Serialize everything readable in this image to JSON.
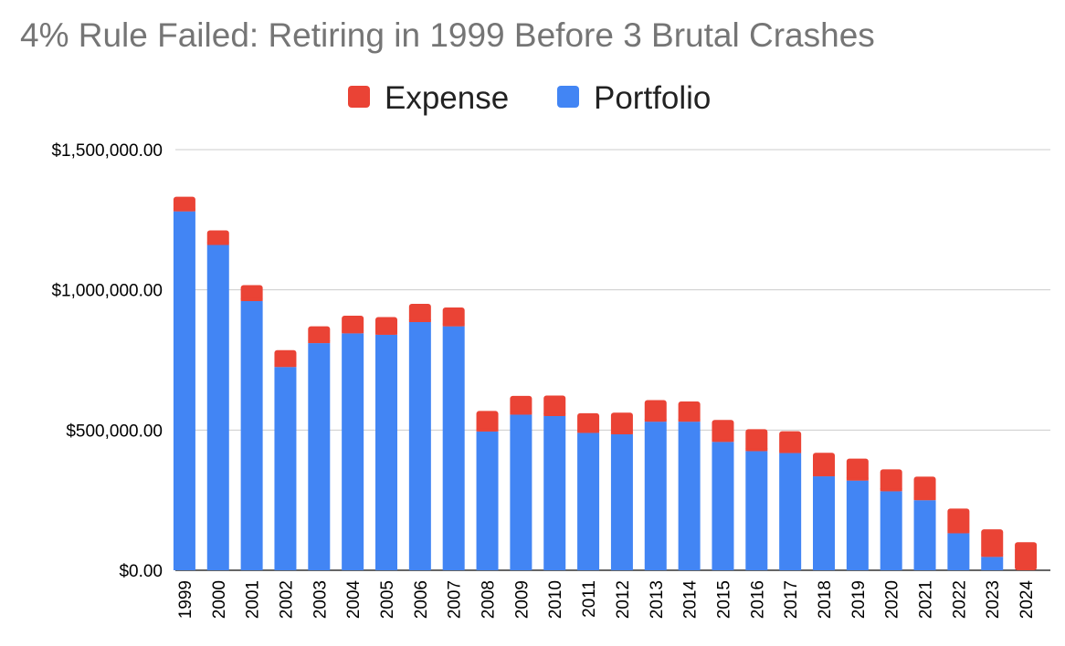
{
  "chart_data": {
    "type": "bar",
    "stacked": true,
    "title": "4% Rule Failed: Retiring in 1999 Before 3 Brutal Crashes",
    "legend_position": "top-center",
    "grid": true,
    "ylim": [
      0,
      1500000
    ],
    "yticks": [
      {
        "value": 0,
        "label": "$0.00"
      },
      {
        "value": 500000,
        "label": "$500,000.00"
      },
      {
        "value": 1000000,
        "label": "$1,000,000.00"
      },
      {
        "value": 1500000,
        "label": "$1,500,000.00"
      }
    ],
    "categories": [
      "1999",
      "2000",
      "2001",
      "2002",
      "2003",
      "2004",
      "2005",
      "2006",
      "2007",
      "2008",
      "2009",
      "2010",
      "2011",
      "2012",
      "2013",
      "2014",
      "2015",
      "2016",
      "2017",
      "2018",
      "2019",
      "2020",
      "2021",
      "2022",
      "2023",
      "2024"
    ],
    "series": [
      {
        "name": "Portfolio",
        "color": "#4285f4",
        "values": [
          1280000,
          1160000,
          960000,
          725000,
          810000,
          845000,
          840000,
          885000,
          870000,
          495000,
          555000,
          550000,
          490000,
          485000,
          530000,
          530000,
          458000,
          425000,
          418000,
          335000,
          320000,
          282000,
          250000,
          132000,
          48000,
          0
        ]
      },
      {
        "name": "Expense",
        "color": "#ea4335",
        "values": [
          52000,
          52000,
          57000,
          60000,
          60000,
          63000,
          63000,
          65000,
          67000,
          73000,
          67000,
          73000,
          70000,
          77000,
          77000,
          72000,
          78000,
          78000,
          78000,
          84000,
          78000,
          78000,
          84000,
          88000,
          98000,
          100000
        ]
      }
    ],
    "legend_order": [
      "Expense",
      "Portfolio"
    ]
  }
}
